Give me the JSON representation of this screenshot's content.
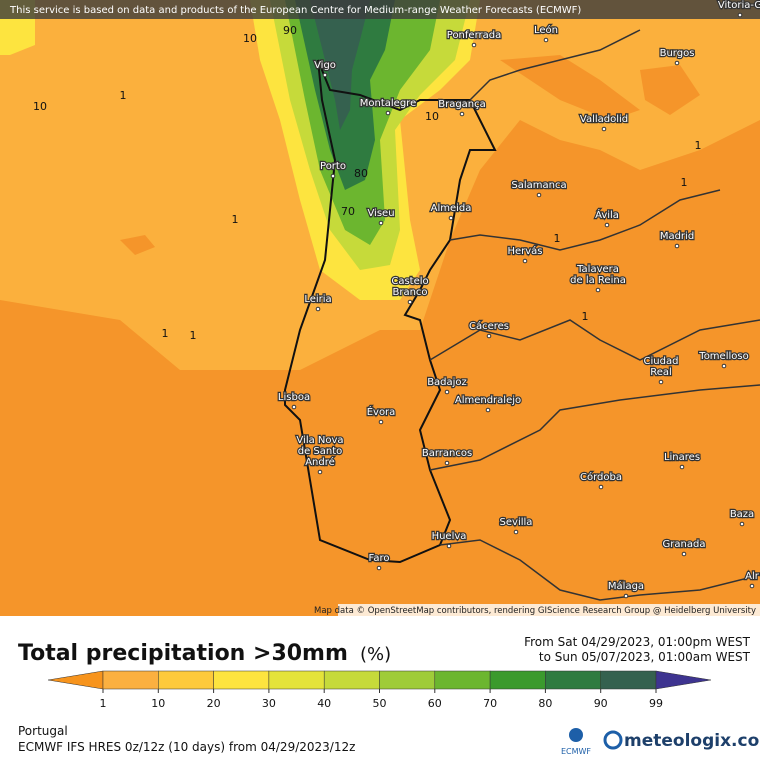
{
  "banner": "This service is based on data and products of the European Centre for Medium-range Weather Forecasts (ECMWF)",
  "cities": [
    [
      "Vigo"
    ],
    [
      "Ponferrada"
    ],
    [
      "León"
    ],
    [
      "Burgos"
    ],
    [
      "Montalegre"
    ],
    [
      "Bragança"
    ],
    [
      "Valladolid"
    ],
    [
      "Porto"
    ],
    [
      "Salamanca"
    ],
    [
      "Almeida"
    ],
    [
      "Viseu"
    ],
    [
      "Ávila"
    ],
    [
      "Madrid"
    ],
    [
      "Hervás"
    ],
    [
      "Talavera",
      "de la Reina"
    ],
    [
      "Castelo",
      "Branco"
    ],
    [
      "Leiria"
    ],
    [
      "Cáceres"
    ],
    [
      "Ciudad",
      "Real"
    ],
    [
      "Tomelloso"
    ],
    [
      "Badajoz"
    ],
    [
      "Almendralejo"
    ],
    [
      "Lisboa"
    ],
    [
      "Évora"
    ],
    [
      "Vila Nova",
      "de Santo",
      "André"
    ],
    [
      "Barrancos"
    ],
    [
      "Linares"
    ],
    [
      "Córdoba"
    ],
    [
      "Sevilla"
    ],
    [
      "Baza"
    ],
    [
      "Huelva"
    ],
    [
      "Granada"
    ],
    [
      "Faro"
    ],
    [
      "Málaga"
    ],
    [
      "Vitoria-G"
    ],
    [
      "Alr"
    ]
  ],
  "contour_labels": [
    "10",
    "90",
    "10",
    "1",
    "10",
    "80",
    "70",
    "1",
    "1",
    "1",
    "1",
    "1",
    "1",
    "1"
  ],
  "attribution": "Map data © OpenStreetMap contributors, rendering GIScience Research Group @ Heidelberg University",
  "title": "Total precipitation >30mm",
  "unit": "(%)",
  "period": [
    "From Sat 04/29/2023, 01:00pm WEST",
    "to Sun 05/07/2023, 01:00am WEST"
  ],
  "legend": {
    "ticks": [
      1,
      10,
      20,
      30,
      40,
      50,
      60,
      70,
      80,
      90,
      99
    ],
    "colors": [
      "#f7941d",
      "#fbb040",
      "#fdca3c",
      "#fde43f",
      "#e4e33a",
      "#c6da3a",
      "#9fcc39",
      "#6cb62f",
      "#3b9a2d",
      "#2f7b40",
      "#35614f",
      "#3e3490"
    ]
  },
  "region": "Portugal",
  "model": "ECMWF IFS HRES 0z/12z (10 days) from 04/29/2023/12z",
  "logos": [
    "ECMWF",
    "meteologix.com"
  ]
}
